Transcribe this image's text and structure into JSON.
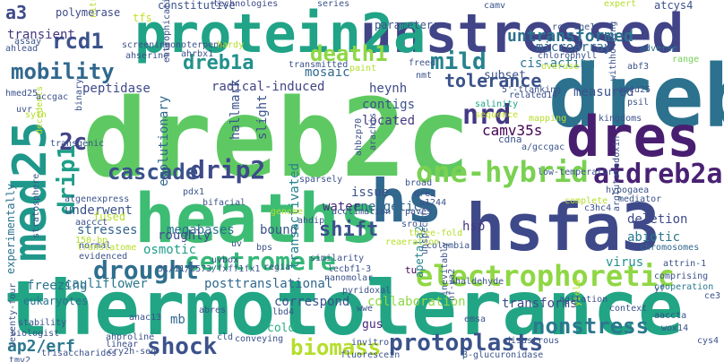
{
  "words": [
    {
      "text": "dreb2c",
      "color": "#5ec962"
    },
    {
      "text": "dreb",
      "color": "#2c728e"
    },
    {
      "text": "thermotolerance",
      "color": "#21a585"
    },
    {
      "text": "heaths",
      "color": "#3dbc74"
    },
    {
      "text": "hsfa3",
      "color": "#3e4989"
    },
    {
      "text": "unstressed",
      "color": "#414487"
    },
    {
      "text": "protein2a",
      "color": "#20a386"
    },
    {
      "text": "dres",
      "color": "#481f70"
    },
    {
      "text": "hs",
      "color": "#31688e"
    },
    {
      "text": "med25",
      "color": "#1f988b"
    },
    {
      "text": "electrophoretic",
      "color": "#8fd744"
    },
    {
      "text": "one-hybrid",
      "color": "#7ad151"
    },
    {
      "text": "atdreb2a",
      "color": "#482173"
    },
    {
      "text": "centromere",
      "color": "#35b779"
    },
    {
      "text": "drought",
      "color": "#2e6f8e"
    },
    {
      "text": "protoplasts",
      "color": "#3b528b"
    },
    {
      "text": "shock",
      "color": "#3b528b"
    },
    {
      "text": "biomass",
      "color": "#b5de2b"
    },
    {
      "text": "nonstress",
      "color": "#2a788e"
    },
    {
      "text": "drip2",
      "color": "#3e4a89"
    },
    {
      "text": "cascade",
      "color": "#3b528b"
    },
    {
      "text": "2c",
      "color": "#414487"
    },
    {
      "text": "drip1",
      "color": "#1f9e89"
    },
    {
      "text": "mobility",
      "color": "#31688e"
    },
    {
      "text": "dreb1a",
      "color": "#21918c"
    },
    {
      "text": "rcd1",
      "color": "#3b528b"
    },
    {
      "text": "a3",
      "color": "#3e4a89"
    },
    {
      "text": "mild",
      "color": "#26828e"
    },
    {
      "text": "death1",
      "color": "#8fd744"
    },
    {
      "text": "nrd",
      "color": "#443983"
    },
    {
      "text": "tolerance",
      "color": "#3b528b"
    },
    {
      "text": "untransformed",
      "color": "#2c728e"
    },
    {
      "text": "shift",
      "color": "#3b528b"
    },
    {
      "text": "ap2/erf",
      "color": "#2a788e"
    },
    {
      "text": "cauliflower",
      "color": "#2a788e"
    },
    {
      "text": "posttranslational",
      "color": "#31688e"
    },
    {
      "text": "correspond",
      "color": "#3b528b"
    },
    {
      "text": "collaboration",
      "color": "#90d743"
    },
    {
      "text": "transforms",
      "color": "#404688"
    },
    {
      "text": "deletion",
      "color": "#3e4a89"
    },
    {
      "text": "abiotic",
      "color": "#2a788e"
    },
    {
      "text": "virus",
      "color": "#20928c"
    },
    {
      "text": "hsp",
      "color": "#443983"
    },
    {
      "text": "camv35s",
      "color": "#440154"
    },
    {
      "text": "energetic",
      "color": "#31688e"
    },
    {
      "text": "water",
      "color": "#482878"
    },
    {
      "text": "issue",
      "color": "#3b528b"
    },
    {
      "text": "bound",
      "color": "#3b528b"
    },
    {
      "text": "megabases",
      "color": "#2c728e"
    },
    {
      "text": "roughly",
      "color": "#3e4a89"
    },
    {
      "text": "stresses",
      "color": "#33628d"
    },
    {
      "text": "underwent",
      "color": "#3b528b"
    },
    {
      "text": "osmotic",
      "color": "#1f9e89"
    },
    {
      "text": "freezing",
      "color": "#2c728e"
    },
    {
      "text": "eukaryotes",
      "color": "#2c728e"
    },
    {
      "text": "cold",
      "color": "#29af7f"
    },
    {
      "text": "mb",
      "color": "#31688e"
    },
    {
      "text": "gus",
      "color": "#482878"
    },
    {
      "text": "located",
      "color": "#443983"
    },
    {
      "text": "contigs",
      "color": "#3b528b"
    },
    {
      "text": "heynh",
      "color": "#3e4a89"
    },
    {
      "text": "subset",
      "color": "#3b528b"
    },
    {
      "text": "microarray",
      "color": "#31688e"
    },
    {
      "text": "cis-acting",
      "color": "#2a788e"
    },
    {
      "text": "measured",
      "color": "#3b528b"
    },
    {
      "text": "parameters",
      "color": "#3b528b"
    },
    {
      "text": "radical-induced",
      "color": "#414487"
    },
    {
      "text": "mosaic",
      "color": "#31688e"
    },
    {
      "text": "peptidase",
      "color": "#3e4a89"
    },
    {
      "text": "transient",
      "color": "#453781"
    },
    {
      "text": "polymerase",
      "color": "#3e4989"
    },
    {
      "text": "constitutive",
      "color": "#3b528b"
    },
    {
      "text": "evolutionary",
      "color": "#31688e"
    },
    {
      "text": "hallmark",
      "color": "#3b528b"
    },
    {
      "text": "slight",
      "color": "#3b528b"
    },
    {
      "text": "transactivated",
      "color": "#26828e"
    },
    {
      "text": "experimentally",
      "color": "#2c728e"
    },
    {
      "text": "apetala2",
      "color": "#26828e"
    },
    {
      "text": "tu",
      "color": "#440154"
    },
    {
      "text": "tfs",
      "color": "#c2df23"
    },
    {
      "text": "technologies",
      "color": "#3e4a89"
    },
    {
      "text": "series",
      "color": "#3b528b"
    },
    {
      "text": "camv",
      "color": "#3b528b"
    },
    {
      "text": "expert",
      "color": "#b5de2b"
    },
    {
      "text": "atcys4",
      "color": "#3b528b"
    },
    {
      "text": "rcd-one1",
      "color": "#3b528b"
    },
    {
      "text": "chlorophyll",
      "color": "#3b528b"
    },
    {
      "text": "abf3",
      "color": "#3b528b"
    },
    {
      "text": "range",
      "color": "#73d055"
    },
    {
      "text": "adverse",
      "color": "#2c728e"
    },
    {
      "text": "overuse",
      "color": "#b5de2b"
    },
    {
      "text": "amed25",
      "color": "#3b528b"
    },
    {
      "text": "psil",
      "color": "#3b528b"
    },
    {
      "text": "related14",
      "color": "#3b528b"
    },
    {
      "text": "5'-flanking",
      "color": "#3b528b"
    },
    {
      "text": "salinity",
      "color": "#20a386"
    },
    {
      "text": "sequence",
      "color": "#c2df23"
    },
    {
      "text": "kingdoms",
      "color": "#3b528b"
    },
    {
      "text": "mapping",
      "color": "#b5de2b"
    },
    {
      "text": "cdna",
      "color": "#3b528b"
    },
    {
      "text": "a/gccgac",
      "color": "#3b528b"
    },
    {
      "text": "low-temperature",
      "color": "#3b528b"
    },
    {
      "text": "hypogaea",
      "color": "#3b528b"
    },
    {
      "text": "mediator",
      "color": "#3b528b"
    },
    {
      "text": "complete",
      "color": "#b5de2b"
    },
    {
      "text": "c3hc4",
      "color": "#3b528b"
    },
    {
      "text": "chromosomes",
      "color": "#31688e"
    },
    {
      "text": "arglutaredoxin",
      "color": "#3b528b"
    },
    {
      "text": "attrin-1",
      "color": "#3b528b"
    },
    {
      "text": "comprising",
      "color": "#3b528b"
    },
    {
      "text": "cooperation",
      "color": "#2a788e"
    },
    {
      "text": "ce3",
      "color": "#3b528b"
    },
    {
      "text": "yf",
      "color": "#3b528b"
    },
    {
      "text": "context",
      "color": "#3b528b"
    },
    {
      "text": "aaccta",
      "color": "#3b528b"
    },
    {
      "text": "wox14",
      "color": "#3b528b"
    },
    {
      "text": "cys4",
      "color": "#3b528b"
    },
    {
      "text": "yield",
      "color": "#c2df23"
    },
    {
      "text": "agitation",
      "color": "#3b528b"
    },
    {
      "text": "emsa",
      "color": "#3b528b"
    },
    {
      "text": "nf-ya2",
      "color": "#3b528b"
    },
    {
      "text": "ahaldehyde",
      "color": "#3b528b"
    },
    {
      "text": "pyridoxal",
      "color": "#3b528b"
    },
    {
      "text": "inevitably",
      "color": "#3b528b"
    },
    {
      "text": "wwe",
      "color": "#3b528b"
    },
    {
      "text": "disastrous",
      "color": "#3b528b"
    },
    {
      "text": "β-glucuronidase",
      "color": "#3b528b"
    },
    {
      "text": "unspecific",
      "color": "#3b528b"
    },
    {
      "text": "sro1",
      "color": "#3b528b"
    },
    {
      "text": "three-fold",
      "color": "#b5de2b"
    },
    {
      "text": "columbia",
      "color": "#3b528b"
    },
    {
      "text": "paves",
      "color": "#3b528b"
    },
    {
      "text": "broad",
      "color": "#3b528b"
    },
    {
      "text": "dre2",
      "color": "#3b528b"
    },
    {
      "text": "p1244",
      "color": "#3b528b"
    },
    {
      "text": "reaeration",
      "color": "#b5de2b"
    },
    {
      "text": "acclimation",
      "color": "#3b528b"
    },
    {
      "text": "ahdip",
      "color": "#3b528b"
    },
    {
      "text": "genome",
      "color": "#b5de2b"
    },
    {
      "text": "similarity",
      "color": "#3b528b"
    },
    {
      "text": "nanomolar",
      "color": "#3b528b"
    },
    {
      "text": "lecbf1-3",
      "color": "#3b528b"
    },
    {
      "text": "bps",
      "color": "#3b528b"
    },
    {
      "text": "regia",
      "color": "#3b528b"
    },
    {
      "text": "uvbox",
      "color": "#3b528b"
    },
    {
      "text": "uv",
      "color": "#3b528b"
    },
    {
      "text": "31/11/2573/fxff1fx1",
      "color": "#3b528b"
    },
    {
      "text": "bifacial",
      "color": "#3b528b"
    },
    {
      "text": "pdx1",
      "color": "#3b528b"
    },
    {
      "text": "atgenexpress",
      "color": "#3b528b"
    },
    {
      "text": "150-bp",
      "color": "#b5de2b"
    },
    {
      "text": "fused",
      "color": "#b5de2b"
    },
    {
      "text": "aaccct",
      "color": "#3b528b"
    },
    {
      "text": "normal",
      "color": "#3b528b"
    },
    {
      "text": "evidenced",
      "color": "#3b528b"
    },
    {
      "text": "translatome",
      "color": "#b5de2b"
    },
    {
      "text": "stability",
      "color": "#3b528b"
    },
    {
      "text": "biologist",
      "color": "#3b528b"
    },
    {
      "text": "stratosphere",
      "color": "#3b528b"
    },
    {
      "text": "transgenic",
      "color": "#3b528b"
    },
    {
      "text": "decedents",
      "color": "#b5de2b"
    },
    {
      "text": "uvr",
      "color": "#3b528b"
    },
    {
      "text": "binary",
      "color": "#3b528b"
    },
    {
      "text": "accgac",
      "color": "#3b528b"
    },
    {
      "text": "hmed25",
      "color": "#3b528b"
    },
    {
      "text": "syth",
      "color": "#b5de2b"
    },
    {
      "text": "ahlead",
      "color": "#3b528b"
    },
    {
      "text": "assay",
      "color": "#3b528b"
    },
    {
      "text": "nitrogen",
      "color": "#b5de2b"
    },
    {
      "text": "screening",
      "color": "#3b528b"
    },
    {
      "text": "monoterpene",
      "color": "#3b528b"
    },
    {
      "text": "ahrbx1",
      "color": "#3b528b"
    },
    {
      "text": "ahserine",
      "color": "#3b528b"
    },
    {
      "text": "eutrophication",
      "color": "#3b528b"
    },
    {
      "text": "hardy",
      "color": "#b5de2b"
    },
    {
      "text": "transmitted",
      "color": "#3b528b"
    },
    {
      "text": "paint",
      "color": "#b5de2b"
    },
    {
      "text": "freed",
      "color": "#3b528b"
    },
    {
      "text": "nmt",
      "color": "#3b528b"
    },
    {
      "text": "withholding",
      "color": "#3b528b"
    },
    {
      "text": "ahbzp70",
      "color": "#3b528b"
    },
    {
      "text": "arachis",
      "color": "#3b528b"
    },
    {
      "text": "sparsely",
      "color": "#3b528b"
    },
    {
      "text": "ahproline",
      "color": "#3b528b"
    },
    {
      "text": "trisaccharides",
      "color": "#3b528b"
    },
    {
      "text": "cry2h-seq",
      "color": "#3b528b"
    },
    {
      "text": "fluorescein",
      "color": "#3b528b"
    },
    {
      "text": "invitro",
      "color": "#3b528b"
    },
    {
      "text": "linear",
      "color": "#3b528b"
    },
    {
      "text": "conveying",
      "color": "#3b528b"
    },
    {
      "text": "anac13",
      "color": "#3b528b"
    },
    {
      "text": "abres",
      "color": "#3b528b"
    },
    {
      "text": "lbd4",
      "color": "#3b528b"
    },
    {
      "text": "tmv2",
      "color": "#3b528b"
    },
    {
      "text": "seventy-four",
      "color": "#3b528b"
    },
    {
      "text": "cld",
      "color": "#3b528b"
    }
  ]
}
